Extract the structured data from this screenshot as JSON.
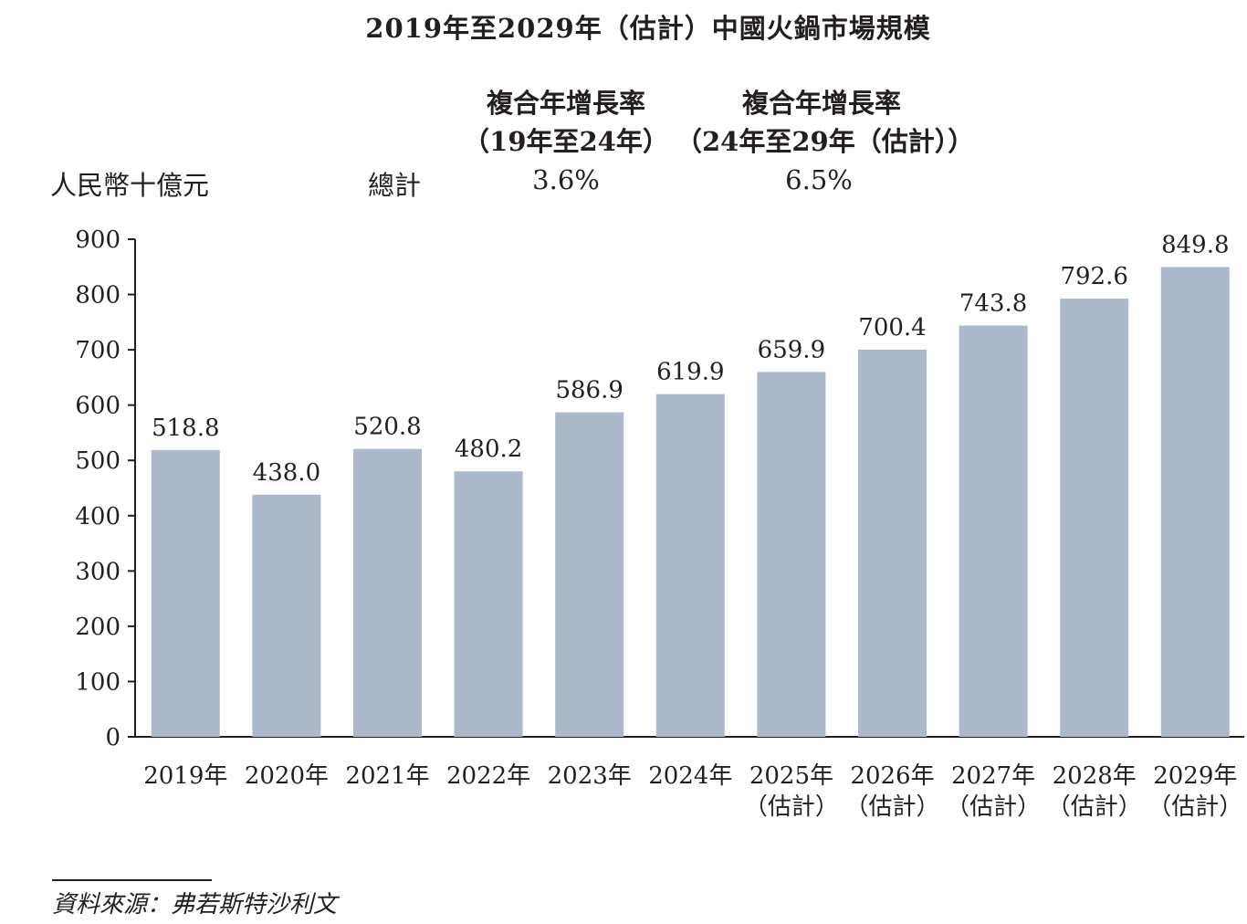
{
  "chart_data": {
    "type": "bar",
    "title": "2019年至2029年（估計）中國火鍋市場規模",
    "ylabel": "人民幣十億元",
    "ylim": [
      0,
      900
    ],
    "yticks": [
      0,
      100,
      200,
      300,
      400,
      500,
      600,
      700,
      800,
      900
    ],
    "categories": [
      {
        "line1": "2019年",
        "line2": ""
      },
      {
        "line1": "2020年",
        "line2": ""
      },
      {
        "line1": "2021年",
        "line2": ""
      },
      {
        "line1": "2022年",
        "line2": ""
      },
      {
        "line1": "2023年",
        "line2": ""
      },
      {
        "line1": "2024年",
        "line2": ""
      },
      {
        "line1": "2025年",
        "line2": "（估計）"
      },
      {
        "line1": "2026年",
        "line2": "（估計）"
      },
      {
        "line1": "2027年",
        "line2": "（估計）"
      },
      {
        "line1": "2028年",
        "line2": "（估計）"
      },
      {
        "line1": "2029年",
        "line2": "（估計）"
      }
    ],
    "values": [
      518.8,
      438.0,
      520.8,
      480.2,
      586.9,
      619.9,
      659.9,
      700.4,
      743.8,
      792.6,
      849.8
    ],
    "value_labels": [
      "518.8",
      "438.0",
      "520.8",
      "480.2",
      "586.9",
      "619.9",
      "659.9",
      "700.4",
      "743.8",
      "792.6",
      "849.8"
    ],
    "bar_color": "#adb9cb",
    "grid": false,
    "cagr": {
      "header_1_line1": "複合年增長率",
      "header_1_line2": "（19年至24年）",
      "header_2_line1": "複合年增長率",
      "header_2_line2": "（24年至29年（估計））",
      "row_label": "總計",
      "value_1": "3.6%",
      "value_2": "6.5%"
    },
    "source": "資料來源：弗若斯特沙利文"
  }
}
